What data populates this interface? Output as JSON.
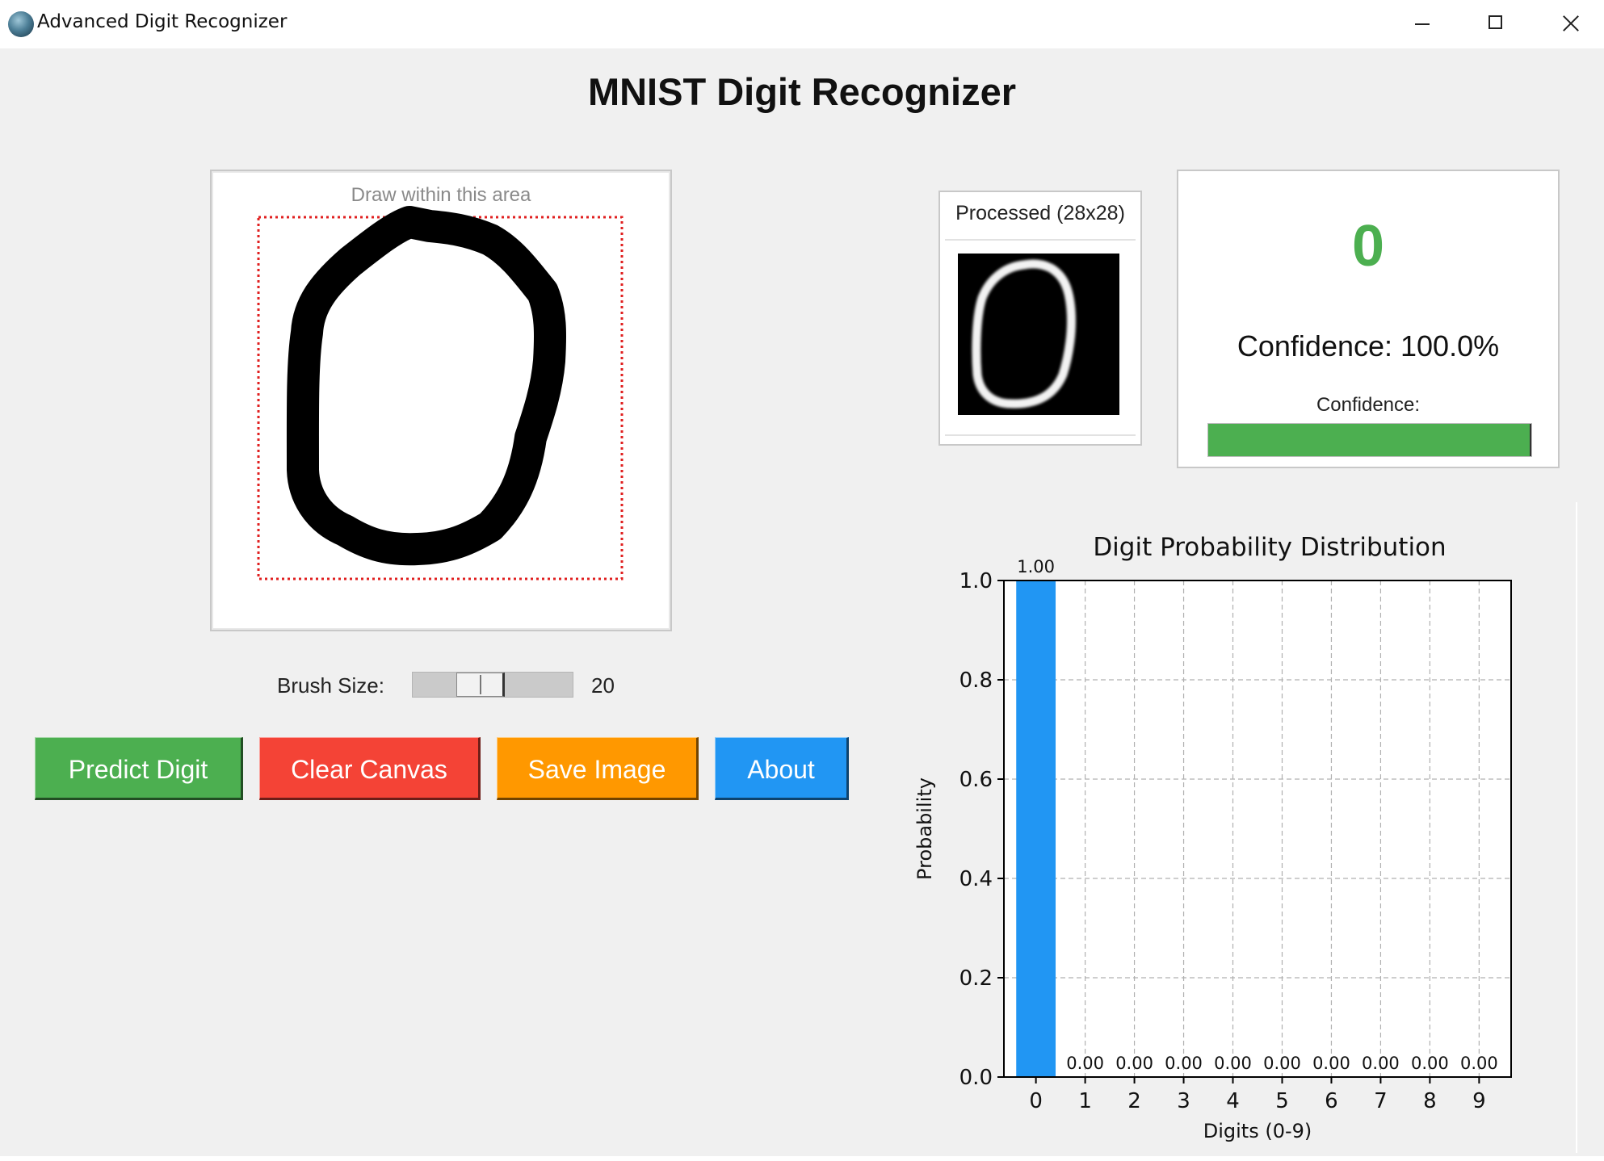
{
  "window": {
    "title": "Advanced Digit Recognizer",
    "icon": "app-globe-icon"
  },
  "page_title": "MNIST Digit Recognizer",
  "canvas": {
    "hint": "Draw within this area",
    "guide_color": "#e02020"
  },
  "brush": {
    "label": "Brush Size:",
    "value": "20",
    "level": 20,
    "min": 1,
    "max": 50
  },
  "buttons": {
    "predict": {
      "label": "Predict Digit",
      "color": "#4caf50"
    },
    "clear": {
      "label": "Clear Canvas",
      "color": "#f44336"
    },
    "save": {
      "label": "Save Image",
      "color": "#ff9800"
    },
    "about": {
      "label": "About",
      "color": "#2196f3"
    }
  },
  "processed": {
    "label": "Processed (28x28)"
  },
  "result": {
    "digit": "0",
    "confidence_text": "Confidence: 100.0%",
    "confidence_bar_label": "Confidence:",
    "confidence_fraction": 1.0,
    "digit_color": "#4caf50"
  },
  "chart_data": {
    "type": "bar",
    "title": "Digit Probability Distribution",
    "xlabel": "Digits (0-9)",
    "ylabel": "Probability",
    "categories": [
      "0",
      "1",
      "2",
      "3",
      "4",
      "5",
      "6",
      "7",
      "8",
      "9"
    ],
    "values": [
      1.0,
      0.0,
      0.0,
      0.0,
      0.0,
      0.0,
      0.0,
      0.0,
      0.0,
      0.0
    ],
    "value_labels": [
      "1.00",
      "0.00",
      "0.00",
      "0.00",
      "0.00",
      "0.00",
      "0.00",
      "0.00",
      "0.00",
      "0.00"
    ],
    "ylim": [
      0,
      1.0
    ],
    "yticks": [
      "0.0",
      "0.2",
      "0.4",
      "0.6",
      "0.8",
      "1.0"
    ],
    "grid": true,
    "bar_color": "#2196f3"
  }
}
